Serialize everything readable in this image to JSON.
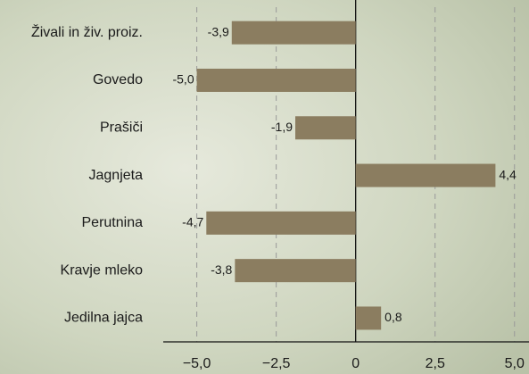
{
  "chart_data": {
    "type": "hbar",
    "categories": [
      "Živali in živ. proiz.",
      "Govedo",
      "Prašiči",
      "Jagnjeta",
      "Perutnina",
      "Kravje mleko",
      "Jedilna jajca"
    ],
    "values": [
      -3.9,
      -5.0,
      -1.9,
      4.4,
      -4.7,
      -3.8,
      0.8
    ],
    "value_labels": [
      "-3,9",
      "-5,0",
      "-1,9",
      "4,4",
      "-4,7",
      "-3,8",
      "0,8"
    ],
    "color": "#8b7d60",
    "xlim": [
      -6,
      5.4
    ],
    "xticks": [
      {
        "value": -5,
        "label": "−5,0"
      },
      {
        "value": -2.5,
        "label": "−2,5"
      },
      0,
      {
        "value": 2.5,
        "label": "2,5"
      },
      {
        "value": 5,
        "label": "5,0"
      }
    ],
    "grid": true
  }
}
